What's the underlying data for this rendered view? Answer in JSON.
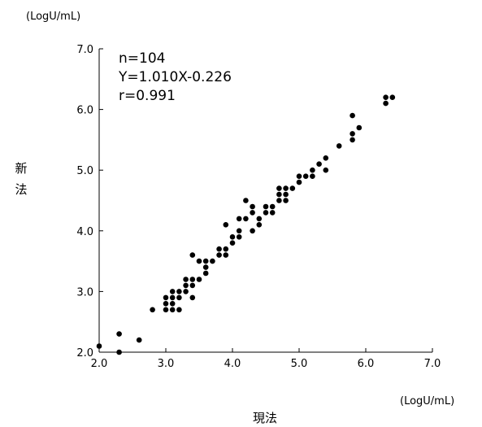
{
  "chart_data": {
    "type": "scatter",
    "title": "",
    "xlabel": "現法",
    "ylabel": "新法",
    "x_unit": "(LogU/mL)",
    "y_unit": "(LogU/mL)",
    "xlim": [
      2.0,
      7.0
    ],
    "ylim": [
      2.0,
      7.0
    ],
    "x_ticks": [
      "2.0",
      "3.0",
      "4.0",
      "5.0",
      "6.0",
      "7.0"
    ],
    "y_ticks": [
      "2.0",
      "3.0",
      "4.0",
      "5.0",
      "6.0",
      "7.0"
    ],
    "grid": false,
    "legend": "none",
    "point_color": "#000000",
    "annotations": [
      "n=104",
      "Y=1.010X-0.226",
      "r=0.991"
    ],
    "points": [
      [
        2.0,
        2.1
      ],
      [
        2.3,
        2.0
      ],
      [
        2.3,
        2.3
      ],
      [
        2.6,
        2.2
      ],
      [
        2.8,
        2.7
      ],
      [
        3.0,
        2.7
      ],
      [
        3.0,
        2.8
      ],
      [
        3.0,
        2.9
      ],
      [
        3.1,
        2.7
      ],
      [
        3.1,
        2.8
      ],
      [
        3.1,
        2.9
      ],
      [
        3.1,
        3.0
      ],
      [
        3.2,
        2.7
      ],
      [
        3.2,
        2.9
      ],
      [
        3.2,
        3.0
      ],
      [
        3.3,
        3.0
      ],
      [
        3.3,
        3.1
      ],
      [
        3.3,
        3.2
      ],
      [
        3.4,
        2.9
      ],
      [
        3.4,
        3.1
      ],
      [
        3.4,
        3.2
      ],
      [
        3.4,
        3.6
      ],
      [
        3.5,
        3.2
      ],
      [
        3.5,
        3.5
      ],
      [
        3.6,
        3.3
      ],
      [
        3.6,
        3.4
      ],
      [
        3.6,
        3.5
      ],
      [
        3.7,
        3.5
      ],
      [
        3.8,
        3.6
      ],
      [
        3.8,
        3.7
      ],
      [
        3.9,
        3.6
      ],
      [
        3.9,
        3.7
      ],
      [
        3.9,
        4.1
      ],
      [
        4.0,
        3.8
      ],
      [
        4.0,
        3.9
      ],
      [
        4.1,
        3.9
      ],
      [
        4.1,
        4.0
      ],
      [
        4.1,
        4.2
      ],
      [
        4.2,
        4.2
      ],
      [
        4.2,
        4.5
      ],
      [
        4.3,
        4.0
      ],
      [
        4.3,
        4.3
      ],
      [
        4.3,
        4.4
      ],
      [
        4.4,
        4.1
      ],
      [
        4.4,
        4.2
      ],
      [
        4.5,
        4.3
      ],
      [
        4.5,
        4.4
      ],
      [
        4.6,
        4.3
      ],
      [
        4.6,
        4.4
      ],
      [
        4.7,
        4.5
      ],
      [
        4.7,
        4.6
      ],
      [
        4.7,
        4.7
      ],
      [
        4.8,
        4.5
      ],
      [
        4.8,
        4.6
      ],
      [
        4.8,
        4.7
      ],
      [
        4.9,
        4.7
      ],
      [
        5.0,
        4.8
      ],
      [
        5.0,
        4.9
      ],
      [
        5.1,
        4.9
      ],
      [
        5.2,
        4.9
      ],
      [
        5.2,
        5.0
      ],
      [
        5.3,
        5.1
      ],
      [
        5.4,
        5.0
      ],
      [
        5.4,
        5.2
      ],
      [
        5.6,
        5.4
      ],
      [
        5.8,
        5.5
      ],
      [
        5.8,
        5.6
      ],
      [
        5.8,
        5.9
      ],
      [
        5.9,
        5.7
      ],
      [
        6.3,
        6.1
      ],
      [
        6.3,
        6.2
      ],
      [
        6.4,
        6.2
      ]
    ]
  }
}
